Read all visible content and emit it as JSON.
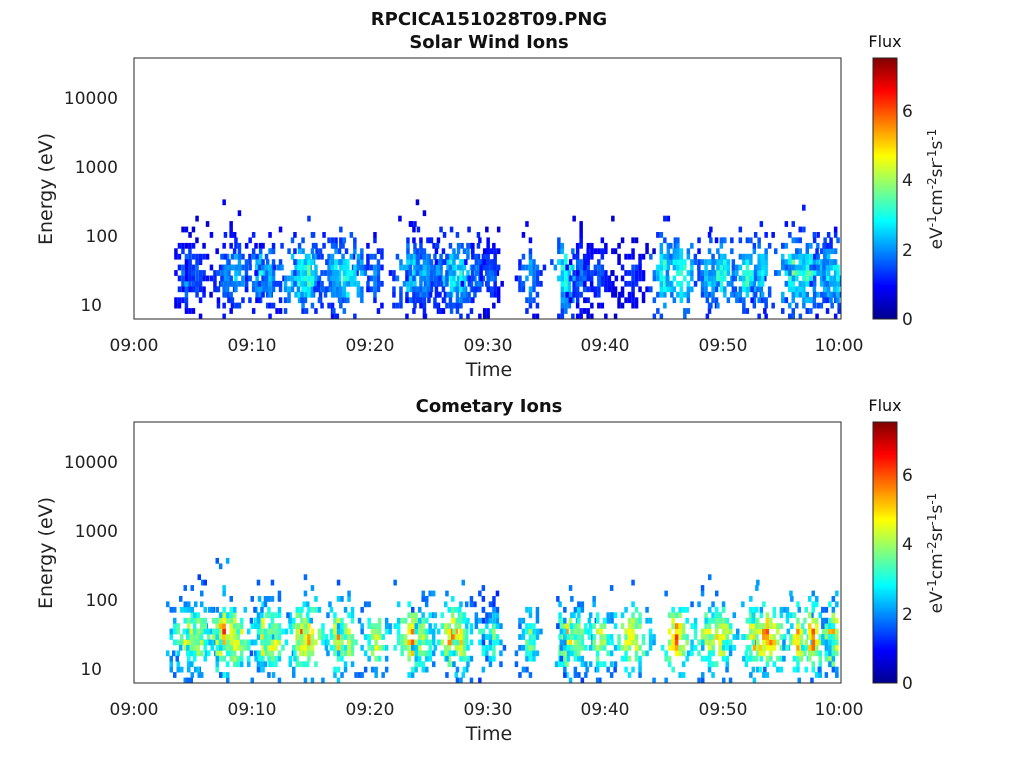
{
  "figure_title": "RPCICA151028T09.PNG",
  "chart_data": [
    {
      "type": "heatmap",
      "title": "Solar Wind Ions",
      "xlabel": "Time",
      "ylabel": "Energy (eV)",
      "x_ticks": [
        "09:00",
        "09:10",
        "09:20",
        "09:30",
        "09:40",
        "09:50",
        "10:00"
      ],
      "x_range_min": [
        0,
        60
      ],
      "y_scale": "log",
      "y_ticks": [
        "10",
        "100",
        "1000",
        "10000"
      ],
      "ylim": [
        6,
        50000
      ],
      "colorbar": {
        "title": "Flux",
        "unit": "eV-1cm-2sr-1s-1",
        "ticks": [
          "0",
          "2",
          "4",
          "6"
        ],
        "range": [
          0,
          7.5
        ],
        "colormap": "jet"
      },
      "bursts_min": [
        4.3,
        5.2,
        7.8,
        8.5,
        10.6,
        11.4,
        13.9,
        14.7,
        17.0,
        18.0,
        20.3,
        23.4,
        24.5,
        26.8,
        27.6,
        29.2,
        30.2,
        33.5,
        36.5,
        37.8,
        39.3,
        42.2,
        44.9,
        46.3,
        48.7,
        49.7,
        51.9,
        53.2,
        55.8,
        57.0,
        58.8,
        59.6
      ],
      "burst_peak_flux": [
        2.4,
        2.0,
        2.6,
        2.8,
        3.2,
        2.7,
        3.6,
        3.8,
        3.0,
        3.8,
        2.4,
        3.3,
        2.6,
        3.6,
        3.2,
        2.2,
        2.1,
        2.6,
        3.8,
        2.2,
        1.8,
        1.6,
        3.8,
        4.0,
        2.9,
        3.8,
        3.7,
        3.4,
        4.2,
        3.8,
        3.1,
        3.3
      ]
    },
    {
      "type": "heatmap",
      "title": "Cometary Ions",
      "xlabel": "Time",
      "ylabel": "Energy (eV)",
      "x_ticks": [
        "09:00",
        "09:10",
        "09:20",
        "09:30",
        "09:40",
        "09:50",
        "10:00"
      ],
      "x_range_min": [
        0,
        60
      ],
      "y_scale": "log",
      "y_ticks": [
        "10",
        "100",
        "1000",
        "10000"
      ],
      "ylim": [
        6,
        50000
      ],
      "colorbar": {
        "title": "Flux",
        "unit": "eV-1cm-2sr-1s-1",
        "ticks": [
          "0",
          "2",
          "4",
          "6"
        ],
        "range": [
          0,
          7.5
        ],
        "colormap": "jet"
      },
      "bursts_min": [
        4.5,
        5.3,
        7.5,
        8.4,
        10.8,
        11.6,
        14.0,
        14.7,
        17.2,
        18.1,
        20.4,
        23.5,
        24.4,
        26.9,
        27.6,
        29.5,
        30.4,
        33.5,
        36.6,
        37.6,
        39.5,
        42.2,
        45.9,
        48.7,
        49.6,
        52.5,
        53.6,
        56.2,
        57.5,
        59.2,
        59.8
      ],
      "burst_peak_flux": [
        5.2,
        4.8,
        6.7,
        5.5,
        6.0,
        5.2,
        6.3,
        6.0,
        5.8,
        5.4,
        5.2,
        6.0,
        5.0,
        6.3,
        5.2,
        4.2,
        4.0,
        4.3,
        6.0,
        4.4,
        5.2,
        5.6,
        6.5,
        5.4,
        6.0,
        6.0,
        6.4,
        5.8,
        6.4,
        6.3,
        4.6
      ]
    }
  ]
}
